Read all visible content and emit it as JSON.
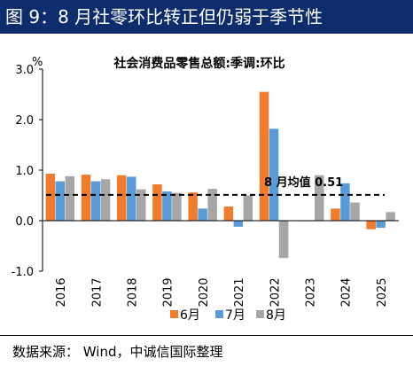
{
  "figure_title": "图 9：8 月社零环比转正但仍弱于季节性",
  "source_note": "数据来源： Wind，中诚信国际整理",
  "colors": {
    "title_bg": "#0d2c6c",
    "jun": "#f07d2f",
    "jul": "#5b9bd5",
    "aug": "#a6a6a6"
  },
  "chart_data": {
    "type": "bar",
    "title": "社会消费品零售总额:季调:环比",
    "ylabel": "",
    "y_unit": "%",
    "ylim": [
      -1.0,
      3.0
    ],
    "yticks": [
      "-1.0",
      "0.0",
      "1.0",
      "2.0",
      "3.0"
    ],
    "ytick_values": [
      -1.0,
      0.0,
      1.0,
      2.0,
      3.0
    ],
    "categories": [
      "2016",
      "2017",
      "2018",
      "2019",
      "2020",
      "2021",
      "2022",
      "2023",
      "2024",
      "2025"
    ],
    "series": [
      {
        "name": "6月",
        "values": [
          0.93,
          0.91,
          0.9,
          0.72,
          0.56,
          0.28,
          2.55,
          0.0,
          0.24,
          -0.17
        ]
      },
      {
        "name": "7月",
        "values": [
          0.78,
          0.78,
          0.87,
          0.58,
          0.24,
          -0.12,
          1.82,
          -0.01,
          0.74,
          -0.14
        ]
      },
      {
        "name": "8月",
        "values": [
          0.88,
          0.82,
          0.62,
          0.55,
          0.63,
          0.5,
          -0.74,
          0.9,
          0.36,
          0.17
        ]
      }
    ],
    "reference_line": {
      "label": "8 月均值 0.51",
      "value": 0.51
    },
    "grid": false,
    "legend_position": "bottom"
  }
}
